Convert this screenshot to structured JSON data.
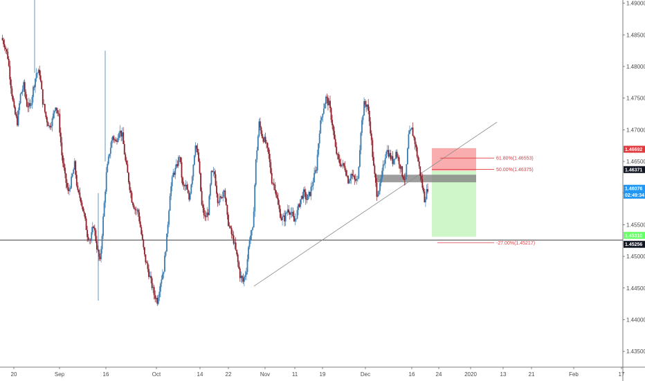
{
  "chart_data": {
    "type": "candlestick",
    "instrument_note": "",
    "x_ticks": [
      "20",
      "Sep",
      "16",
      "Oct",
      "14",
      "22",
      "Nov",
      "11",
      "19",
      "Dec",
      "16",
      "24",
      "2020",
      "13",
      "21",
      "Feb",
      "17"
    ],
    "y_ticks": [
      "1.49000",
      "1.48500",
      "1.48000",
      "1.47500",
      "1.47000",
      "1.46500",
      "1.46000",
      "1.45500",
      "1.45000",
      "1.44500",
      "1.44000",
      "1.43500"
    ],
    "ylim": [
      1.4325,
      1.4905
    ],
    "price_labels": [
      {
        "value": 1.46692,
        "label": "1.46692",
        "bg": "#e0393e",
        "fg": "#ffffff"
      },
      {
        "value": 1.46371,
        "label": "1.46371",
        "bg": "#131722",
        "fg": "#ffffff"
      },
      {
        "value": 1.46076,
        "label": "1.46076",
        "bg": "#2196f3",
        "fg": "#ffffff",
        "sub": "02:49:34"
      },
      {
        "value": 1.4531,
        "label": "1.45310",
        "bg": "#66ff66",
        "fg": "#ffffff"
      },
      {
        "value": 1.45256,
        "label": "1.45256",
        "bg": "#131722",
        "fg": "#ffffff"
      }
    ],
    "fib_levels": [
      {
        "label": "61.80%(1.46553)",
        "value": 1.46553
      },
      {
        "label": "50.00%(1.46375)",
        "value": 1.46375
      },
      {
        "label": "-27.00%(1.45217)",
        "value": 1.45217
      }
    ],
    "horizontal_line": 1.45256,
    "trendline": {
      "start": {
        "date": "Oct 27",
        "price": 1.4453
      },
      "end": {
        "date": "Jan 3",
        "price": 1.4712
      }
    },
    "risk_zone": {
      "top": 1.4671,
      "bottom": 1.4635
    },
    "reward_zone": {
      "top": 1.4635,
      "bottom": 1.4531
    },
    "gray_zone": {
      "top": 1.4629,
      "bottom": 1.4617
    },
    "colors": {
      "up": "#3a7bb0",
      "down": "#8c1f2a",
      "risk": "#f8a4a6",
      "reward": "#c9f5c3",
      "fib": "#e0393e"
    },
    "candles_path": [
      1.4845,
      1.4835,
      1.4815,
      1.477,
      1.473,
      1.4712,
      1.4755,
      1.477,
      1.474,
      1.4735,
      1.4765,
      1.479,
      1.479,
      1.4745,
      1.472,
      1.4705,
      1.4715,
      1.474,
      1.472,
      1.466,
      1.4625,
      1.46,
      1.462,
      1.4645,
      1.46,
      1.459,
      1.4565,
      1.4535,
      1.4525,
      1.455,
      1.4515,
      1.449,
      1.456,
      1.463,
      1.4665,
      1.469,
      1.468,
      1.47,
      1.469,
      1.465,
      1.462,
      1.459,
      1.4575,
      1.457,
      1.4535,
      1.45,
      1.448,
      1.446,
      1.444,
      1.443,
      1.446,
      1.448,
      1.453,
      1.46,
      1.463,
      1.464,
      1.466,
      1.461,
      1.461,
      1.459,
      1.463,
      1.468,
      1.465,
      1.458,
      1.456,
      1.457,
      1.463,
      1.463,
      1.459,
      1.459,
      1.461,
      1.456,
      1.454,
      1.4525,
      1.45,
      1.447,
      1.446,
      1.448,
      1.453,
      1.454,
      1.465,
      1.471,
      1.469,
      1.468,
      1.466,
      1.462,
      1.461,
      1.458,
      1.456,
      1.456,
      1.4575,
      1.457,
      1.4555,
      1.457,
      1.459,
      1.46,
      1.459,
      1.46,
      1.462,
      1.464,
      1.47,
      1.473,
      1.475,
      1.474,
      1.471,
      1.467,
      1.465,
      1.4645,
      1.464,
      1.462,
      1.463,
      1.462,
      1.462,
      1.47,
      1.474,
      1.474,
      1.47,
      1.464,
      1.46,
      1.461,
      1.464,
      1.467,
      1.466,
      1.465,
      1.4665,
      1.465,
      1.463,
      1.462,
      1.469,
      1.47,
      1.468,
      1.465,
      1.462,
      1.459,
      1.4608
    ]
  }
}
